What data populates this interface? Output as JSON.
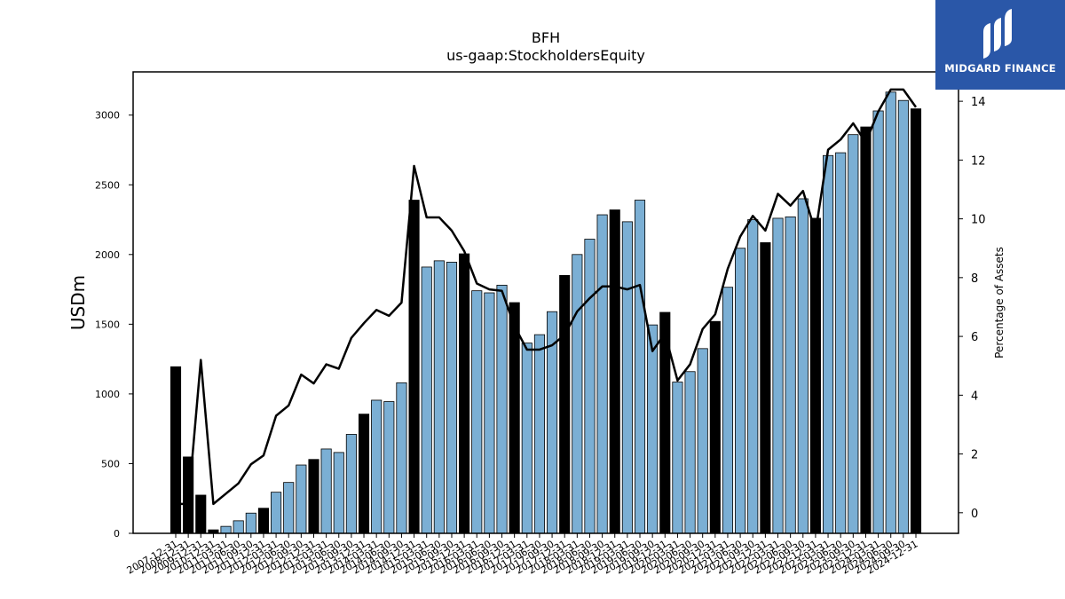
{
  "chart_data": {
    "type": "bar",
    "title": "BFH",
    "subtitle": "us-gaap:StockholdersEquity",
    "ylabel": "USDm",
    "y2label": "Percentage of Assets",
    "ylim": [
      0,
      3310
    ],
    "y2lim": [
      -0.7,
      15.0
    ],
    "yticks": [
      0,
      500,
      1000,
      1500,
      2000,
      2500,
      3000
    ],
    "y2ticks": [
      0,
      2,
      4,
      6,
      8,
      10,
      12,
      14
    ],
    "bar_colors": {
      "annual": "#000000",
      "quarterly": "#7bafd4"
    },
    "line_color": "#000000",
    "categories": [
      "2007-12-31",
      "2008-12-31",
      "2009-12-31",
      "2010-12-31",
      "2011-03-31",
      "2011-06-30",
      "2011-09-30",
      "2011-12-31",
      "2012-03-31",
      "2012-06-30",
      "2012-09-30",
      "2012-12-31",
      "2013-03-31",
      "2013-06-30",
      "2013-09-30",
      "2013-12-31",
      "2014-03-31",
      "2014-06-30",
      "2014-09-30",
      "2014-12-31",
      "2015-03-31",
      "2015-06-30",
      "2015-09-30",
      "2015-12-31",
      "2016-03-31",
      "2016-06-30",
      "2016-09-30",
      "2016-12-31",
      "2017-03-31",
      "2017-06-30",
      "2017-09-30",
      "2017-12-31",
      "2018-03-31",
      "2018-06-30",
      "2018-09-30",
      "2018-12-31",
      "2019-03-31",
      "2019-06-30",
      "2019-09-30",
      "2019-12-31",
      "2020-03-31",
      "2020-06-30",
      "2020-09-30",
      "2020-12-31",
      "2021-03-31",
      "2021-06-30",
      "2021-09-30",
      "2021-12-31",
      "2022-03-31",
      "2022-06-30",
      "2022-09-30",
      "2022-12-31",
      "2023-03-31",
      "2023-06-30",
      "2023-09-30",
      "2023-12-31",
      "2024-03-31",
      "2024-06-30",
      "2024-09-30",
      "2024-12-31"
    ],
    "annual": [
      true,
      true,
      true,
      true,
      false,
      false,
      false,
      true,
      false,
      false,
      false,
      true,
      false,
      false,
      false,
      true,
      false,
      false,
      false,
      true,
      false,
      false,
      false,
      true,
      false,
      false,
      false,
      true,
      false,
      false,
      false,
      true,
      false,
      false,
      false,
      true,
      false,
      false,
      false,
      true,
      false,
      false,
      false,
      true,
      false,
      false,
      false,
      true,
      false,
      false,
      false,
      true,
      false,
      false,
      false,
      true,
      false,
      false,
      false,
      true
    ],
    "series": [
      {
        "values": [
          1195,
          548,
          274,
          25,
          50,
          90,
          145,
          180,
          295,
          365,
          490,
          530,
          605,
          580,
          710,
          855,
          955,
          945,
          1080,
          2390,
          1910,
          1955,
          1945,
          2005,
          1740,
          1725,
          1780,
          1655,
          1365,
          1425,
          1590,
          1850,
          2000,
          2110,
          2285,
          2320,
          2235,
          2390,
          1495,
          1585,
          1085,
          1160,
          1325,
          1520,
          1765,
          2045,
          2250,
          2085,
          2260,
          2270,
          2400,
          2260,
          2710,
          2730,
          2860,
          2915,
          3030,
          3165,
          3105,
          3045
        ]
      },
      {
        "values": [
          0.3,
          0.3,
          5.2,
          0.3,
          0.65,
          1.0,
          1.65,
          1.95,
          3.3,
          3.65,
          4.7,
          4.4,
          5.05,
          4.9,
          5.95,
          6.45,
          6.9,
          6.7,
          7.15,
          11.8,
          10.05,
          10.05,
          9.6,
          8.9,
          7.8,
          7.6,
          7.55,
          6.35,
          5.55,
          5.55,
          5.7,
          6.05,
          6.85,
          7.3,
          7.7,
          7.7,
          7.6,
          7.75,
          5.5,
          6.1,
          4.5,
          5.05,
          6.25,
          6.75,
          8.3,
          9.4,
          10.1,
          9.6,
          10.85,
          10.45,
          10.95,
          9.55,
          12.35,
          12.7,
          13.25,
          12.6,
          13.65,
          14.4,
          14.4,
          13.8
        ]
      }
    ]
  },
  "logo": {
    "brand": "MIDGARD FINANCE"
  }
}
